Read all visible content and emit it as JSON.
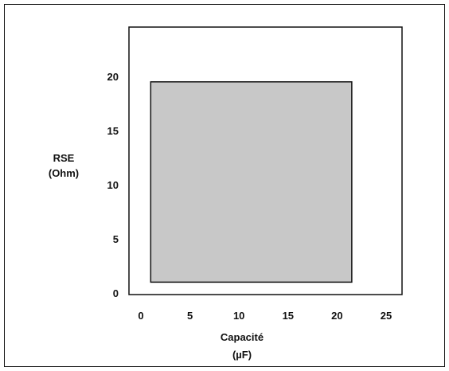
{
  "chart_data": {
    "type": "area",
    "title": "",
    "xlabel": [
      "Capacité",
      "(µF)"
    ],
    "ylabel": [
      "RSE",
      "(Ohm)"
    ],
    "x_ticks": [
      "0",
      "5",
      "10",
      "15",
      "20",
      "25"
    ],
    "y_ticks": [
      "0",
      "5",
      "10",
      "15",
      "20"
    ],
    "xlim": [
      0,
      25
    ],
    "ylim": [
      0,
      24
    ],
    "grid": false,
    "legend": "none",
    "region": {
      "x_min": 1,
      "x_max": 21.5,
      "y_min": 1,
      "y_max": 19.5
    },
    "colors": {
      "region_fill": "#c8c8c8",
      "region_stroke": "#111111",
      "axis": "#111111",
      "background": "#ffffff"
    }
  }
}
